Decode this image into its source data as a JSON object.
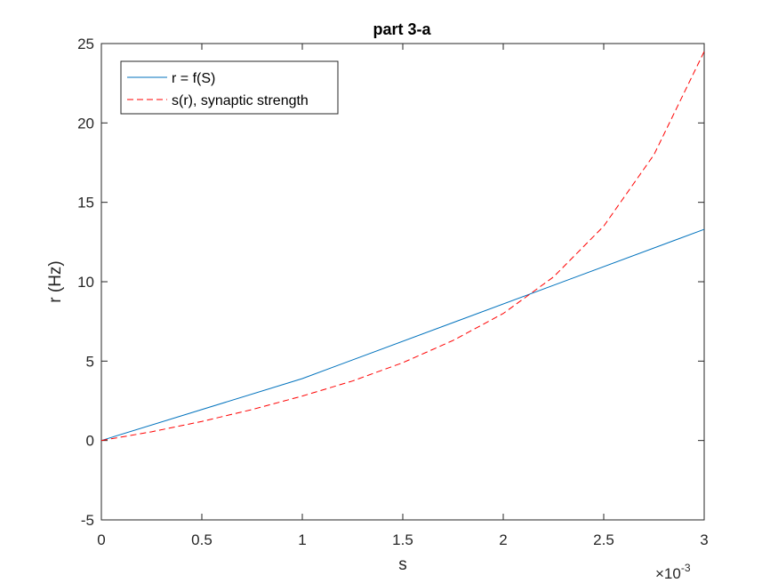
{
  "chart_data": {
    "type": "line",
    "title": "part 3-a",
    "xlabel": "s",
    "ylabel": "r (Hz)",
    "x_exponent_label": {
      "base": "×10",
      "power": "-3"
    },
    "xlim": [
      0,
      0.003
    ],
    "ylim": [
      -5,
      25
    ],
    "xticks": [
      0,
      0.0005,
      0.001,
      0.0015,
      0.002,
      0.0025,
      0.003
    ],
    "xtick_labels": [
      "0",
      "0.5",
      "1",
      "1.5",
      "2",
      "2.5",
      "3"
    ],
    "yticks": [
      -5,
      0,
      5,
      10,
      15,
      20,
      25
    ],
    "ytick_labels": [
      "-5",
      "0",
      "5",
      "10",
      "15",
      "20",
      "25"
    ],
    "grid": false,
    "legend_position": "top-left",
    "series": [
      {
        "name": "r = f(S)",
        "color": "#0072BD",
        "style": "solid",
        "x": [
          0,
          0.001,
          0.003
        ],
        "y": [
          0,
          3.9,
          13.3
        ]
      },
      {
        "name": "s(r), synaptic strength",
        "color": "#FF0000",
        "style": "dashed",
        "x": [
          0,
          0.00025,
          0.0005,
          0.00075,
          0.001,
          0.00125,
          0.0015,
          0.00175,
          0.002,
          0.00225,
          0.0025,
          0.00275,
          0.003
        ],
        "y": [
          0,
          0.55,
          1.2,
          1.95,
          2.8,
          3.75,
          4.9,
          6.3,
          8.0,
          10.3,
          13.5,
          18.0,
          24.5
        ]
      }
    ]
  }
}
